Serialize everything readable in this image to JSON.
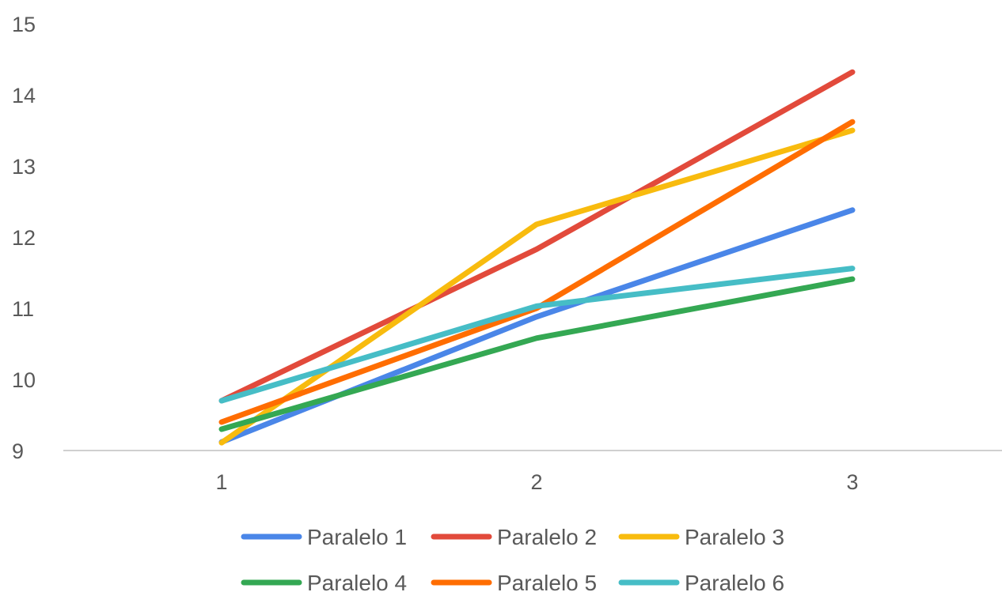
{
  "chart_data": {
    "type": "line",
    "title": "",
    "xlabel": "",
    "ylabel": "",
    "x": [
      "1",
      "2",
      "3"
    ],
    "ylim": [
      9,
      15
    ],
    "yticks": [
      "9",
      "10",
      "11",
      "12",
      "13",
      "14",
      "15"
    ],
    "grid": false,
    "legend_position": "bottom",
    "series": [
      {
        "name": "Paralelo 1",
        "color": "#4a86e8",
        "values": [
          9.12,
          10.88,
          12.38
        ]
      },
      {
        "name": "Paralelo 2",
        "color": "#e24a3b",
        "values": [
          9.7,
          11.83,
          14.32
        ]
      },
      {
        "name": "Paralelo 3",
        "color": "#f8bb0e",
        "values": [
          9.11,
          12.18,
          13.5
        ]
      },
      {
        "name": "Paralelo 4",
        "color": "#34a853",
        "values": [
          9.3,
          10.58,
          11.41
        ]
      },
      {
        "name": "Paralelo 5",
        "color": "#ff6d01",
        "values": [
          9.4,
          11.0,
          13.62
        ]
      },
      {
        "name": "Paralelo 6",
        "color": "#46bdc6",
        "values": [
          9.7,
          11.03,
          11.56
        ]
      }
    ]
  }
}
